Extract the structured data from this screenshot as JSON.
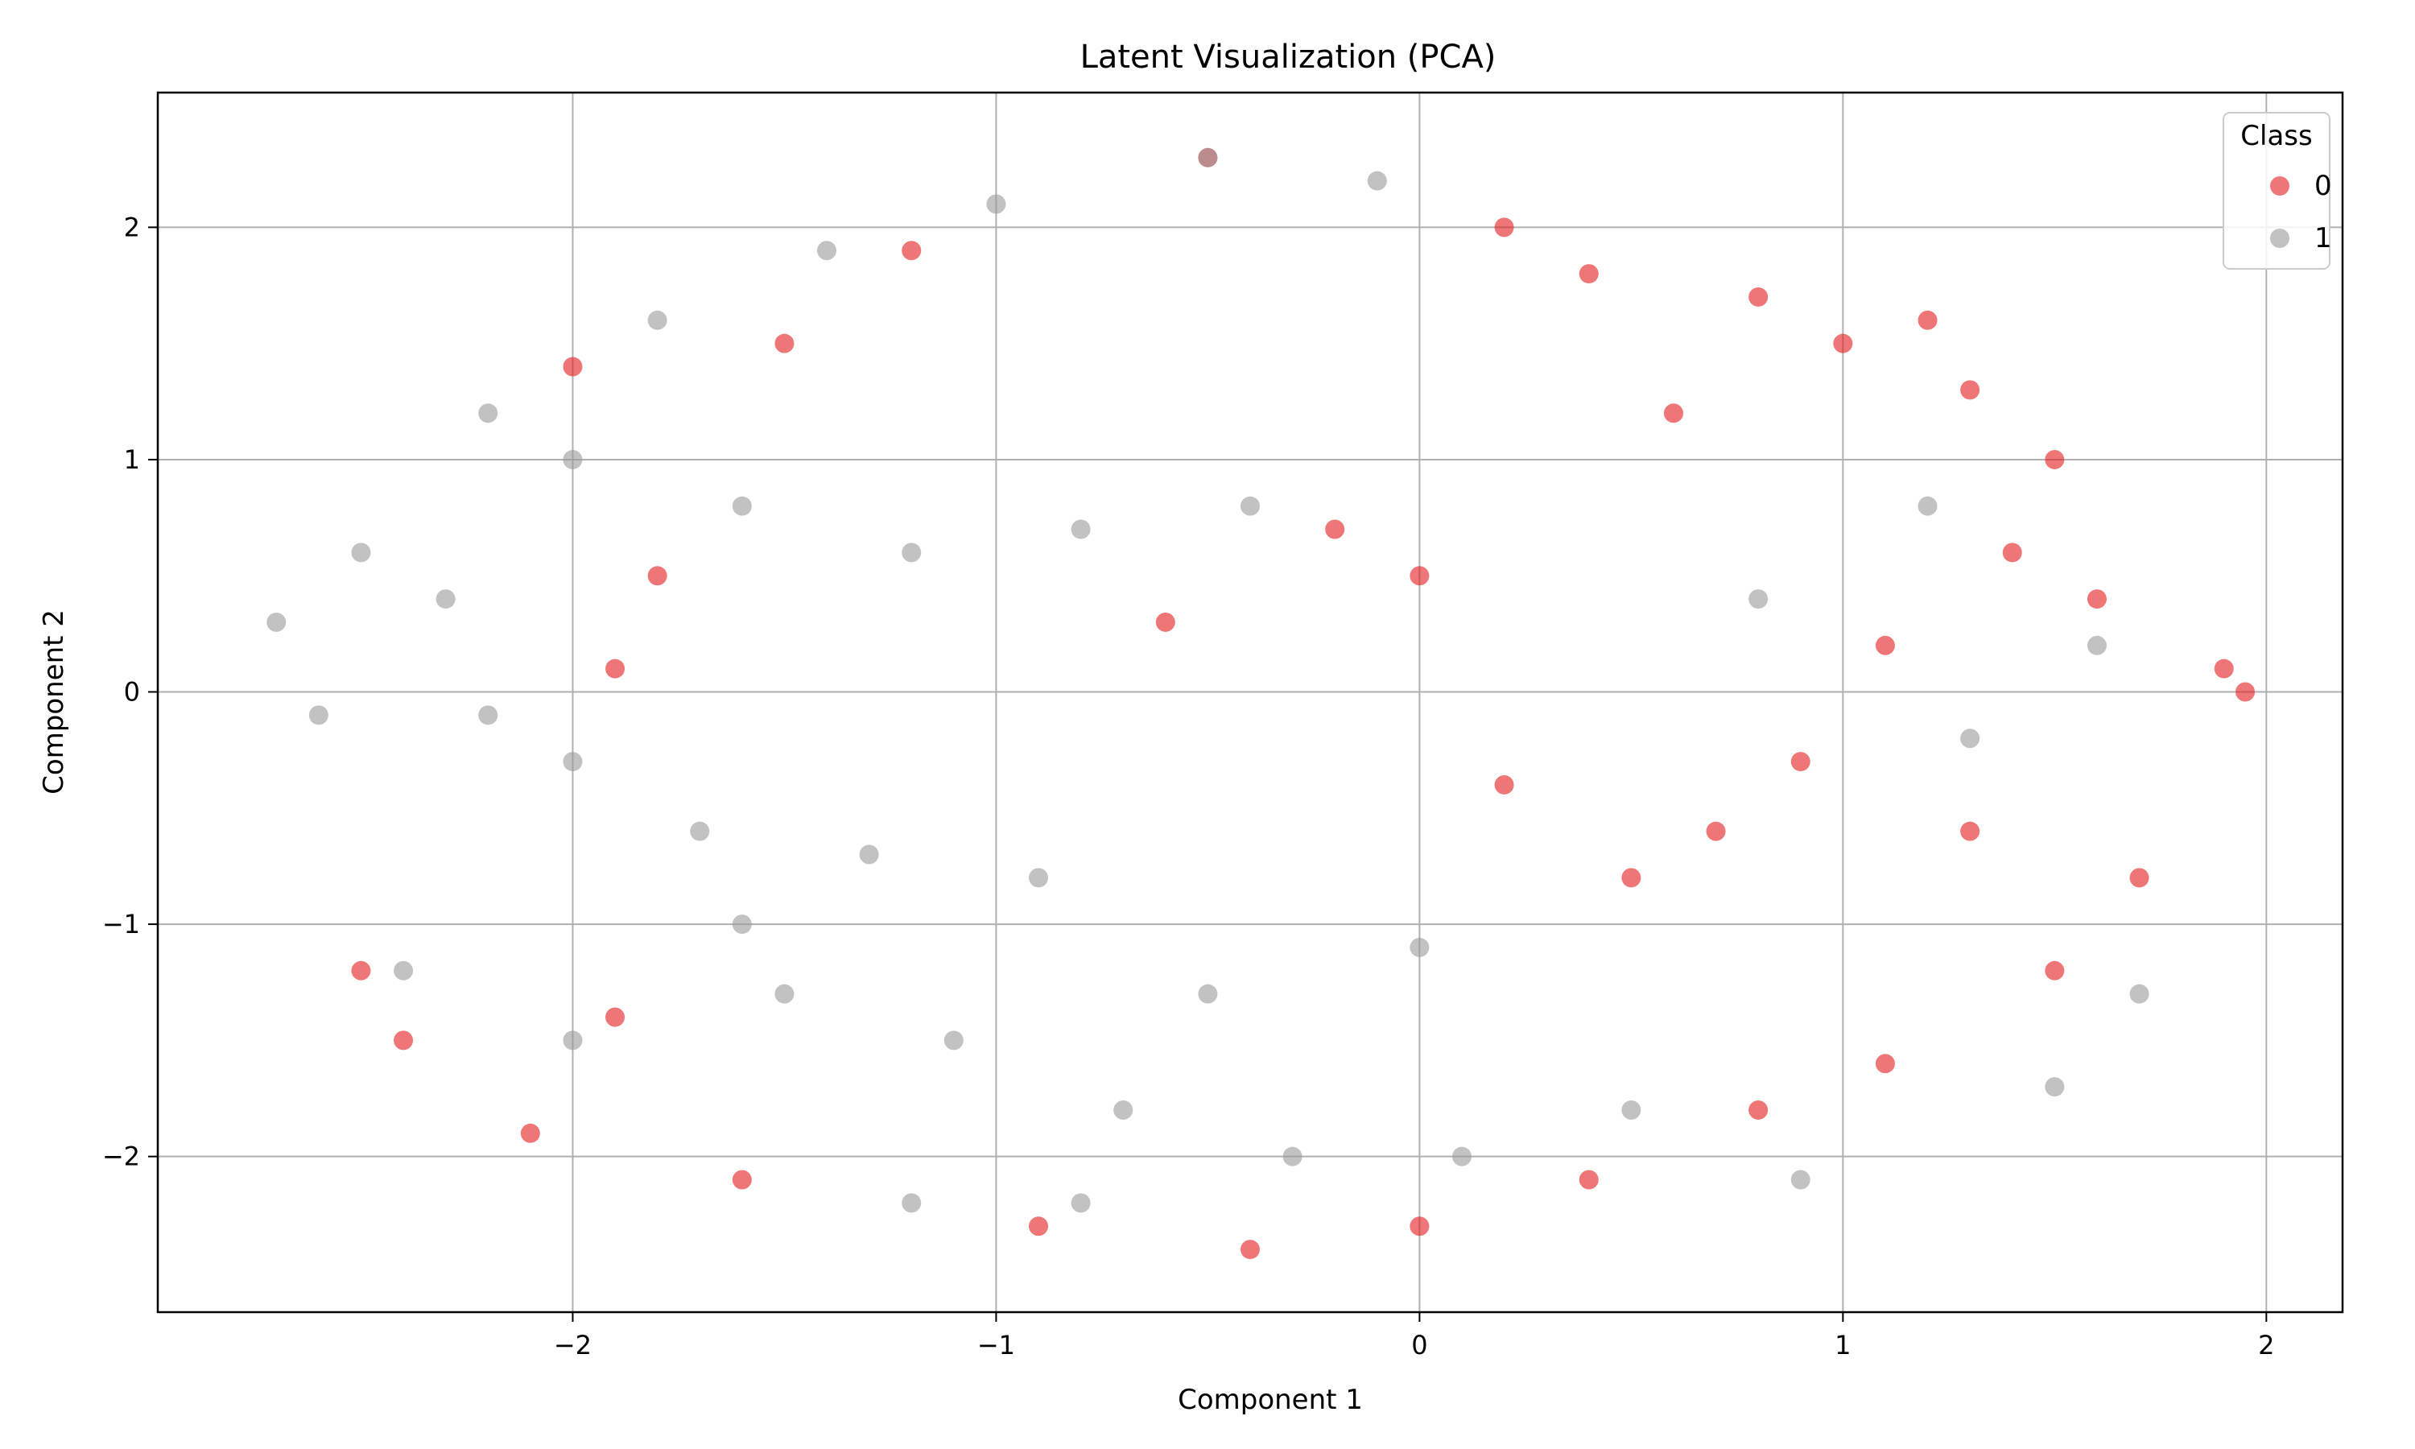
{
  "chart_data": {
    "type": "scatter",
    "title": "Latent Visualization (PCA)",
    "xlabel": "Component 1",
    "ylabel": "Component 2",
    "xlim": [
      -2.98,
      2.18
    ],
    "ylim": [
      -2.67,
      2.58
    ],
    "xticks": [
      -2,
      -1,
      0,
      1,
      2
    ],
    "yticks": [
      -2,
      -1,
      0,
      1,
      2
    ],
    "grid": true,
    "legend": {
      "title": "Class",
      "position": "top-right"
    },
    "series": [
      {
        "name": "0",
        "color": "#e41a1c",
        "points": [
          [
            1.2,
            1.6
          ],
          [
            1.0,
            1.5
          ],
          [
            0.8,
            1.7
          ],
          [
            1.3,
            1.3
          ],
          [
            1.5,
            1.0
          ],
          [
            0.6,
            1.2
          ],
          [
            0.4,
            1.8
          ],
          [
            0.2,
            2.0
          ],
          [
            1.4,
            0.6
          ],
          [
            1.6,
            0.4
          ],
          [
            1.1,
            0.2
          ],
          [
            0.9,
            -0.3
          ],
          [
            0.7,
            -0.6
          ],
          [
            0.5,
            -0.8
          ],
          [
            0.2,
            -0.4
          ],
          [
            1.3,
            -0.6
          ],
          [
            1.7,
            -0.8
          ],
          [
            1.5,
            -1.2
          ],
          [
            1.1,
            -1.6
          ],
          [
            0.8,
            -1.8
          ],
          [
            0.4,
            -2.1
          ],
          [
            0.0,
            -2.3
          ],
          [
            -0.4,
            -2.4
          ],
          [
            -0.9,
            -2.3
          ],
          [
            -1.6,
            -2.1
          ],
          [
            -2.1,
            -1.9
          ],
          [
            -2.4,
            -1.5
          ],
          [
            -2.5,
            -1.2
          ],
          [
            -1.9,
            -1.4
          ],
          [
            -1.5,
            1.5
          ],
          [
            -2.0,
            1.4
          ],
          [
            -1.8,
            0.5
          ],
          [
            -1.9,
            0.1
          ],
          [
            -0.6,
            0.3
          ],
          [
            1.95,
            0.0
          ],
          [
            1.9,
            0.1
          ],
          [
            0.0,
            0.5
          ],
          [
            -0.2,
            0.7
          ],
          [
            -1.2,
            1.9
          ],
          [
            -0.5,
            2.3
          ]
        ]
      },
      {
        "name": "1",
        "color": "#999999",
        "points": [
          [
            -2.7,
            0.3
          ],
          [
            -2.5,
            0.6
          ],
          [
            -2.2,
            1.2
          ],
          [
            -1.8,
            1.6
          ],
          [
            -1.4,
            1.9
          ],
          [
            -1.0,
            2.1
          ],
          [
            -0.5,
            2.3
          ],
          [
            -0.1,
            2.2
          ],
          [
            -2.0,
            1.0
          ],
          [
            -1.6,
            0.8
          ],
          [
            -1.2,
            0.6
          ],
          [
            -0.8,
            0.7
          ],
          [
            -0.4,
            0.8
          ],
          [
            -2.6,
            -0.1
          ],
          [
            -2.3,
            0.4
          ],
          [
            -2.2,
            -0.1
          ],
          [
            -2.0,
            -0.3
          ],
          [
            -1.7,
            -0.6
          ],
          [
            -1.3,
            -0.7
          ],
          [
            -0.9,
            -0.8
          ],
          [
            -2.4,
            -1.2
          ],
          [
            -2.0,
            -1.5
          ],
          [
            -1.5,
            -1.3
          ],
          [
            -1.1,
            -1.5
          ],
          [
            -0.7,
            -1.8
          ],
          [
            -0.3,
            -2.0
          ],
          [
            0.1,
            -2.0
          ],
          [
            0.5,
            -1.8
          ],
          [
            -0.5,
            -1.3
          ],
          [
            0.0,
            -1.1
          ],
          [
            1.7,
            -1.3
          ],
          [
            1.5,
            -1.7
          ],
          [
            1.2,
            0.8
          ],
          [
            0.8,
            0.4
          ],
          [
            1.3,
            -0.2
          ],
          [
            1.6,
            0.2
          ],
          [
            -1.6,
            -1.0
          ],
          [
            -0.8,
            -2.2
          ],
          [
            0.9,
            -2.1
          ],
          [
            -1.2,
            -2.2
          ]
        ]
      }
    ]
  }
}
